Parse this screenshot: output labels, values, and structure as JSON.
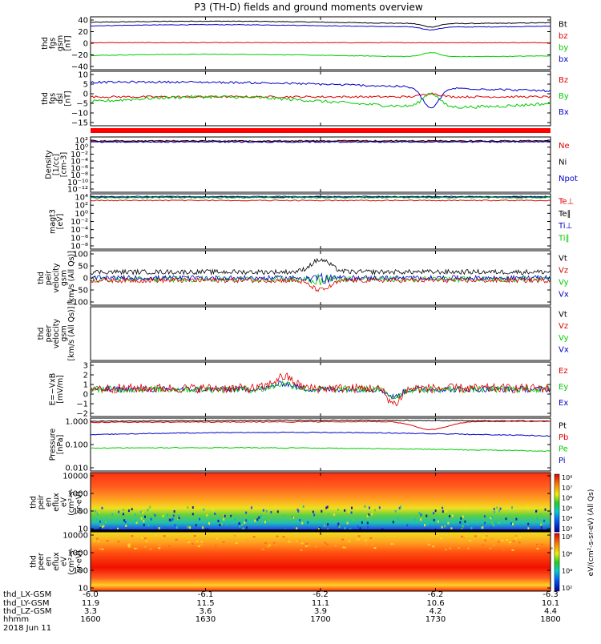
{
  "chart_data": {
    "type": "multi-panel-timeseries",
    "title": "P3 (TH-D) fields and ground moments overview",
    "date": "2018 Jun 11",
    "time_axis": {
      "start": "1600",
      "end": "1800",
      "ticks": [
        {
          "hhmm": "1600",
          "x_gsm": "-6.0",
          "y_gsm": "11.9",
          "z_gsm": "3.3"
        },
        {
          "hhmm": "1630",
          "x_gsm": "-6.1",
          "y_gsm": "11.5",
          "z_gsm": "3.6"
        },
        {
          "hhmm": "1700",
          "x_gsm": "-6.2",
          "y_gsm": "11.1",
          "z_gsm": "3.9"
        },
        {
          "hhmm": "1730",
          "x_gsm": "-6.2",
          "y_gsm": "10.6",
          "z_gsm": "4.2"
        },
        {
          "hhmm": "1800",
          "x_gsm": "-6.3",
          "y_gsm": "10.1",
          "z_gsm": "4.4"
        }
      ]
    },
    "ephemeris_labels": [
      "thd_LX-GSM",
      "thd_LY-GSM",
      "thd_LZ-GSM",
      "hhmm"
    ],
    "colors": {
      "black": "#000000",
      "red": "#e00000",
      "green": "#00cc00",
      "blue": "#0000cc"
    },
    "panels": [
      {
        "id": "fgs-gsm",
        "ylabel": [
          "thd",
          "fgs",
          "gsm",
          "[nT]"
        ],
        "ylim": [
          -40,
          40
        ],
        "yticks": [
          "40",
          "20",
          "0",
          "−20",
          "−40"
        ],
        "legend": [
          {
            "label": "Bt",
            "color": "black"
          },
          {
            "label": "bz",
            "color": "red"
          },
          {
            "label": "by",
            "color": "green"
          },
          {
            "label": "bx",
            "color": "blue"
          }
        ],
        "series": [
          {
            "name": "Bt",
            "color": "black",
            "base": 36,
            "noise": 0.6,
            "trend": 2,
            "dip": -6
          },
          {
            "name": "bx",
            "color": "blue",
            "base": 30,
            "noise": 0.5,
            "trend": 2,
            "dip": -5
          },
          {
            "name": "bz",
            "color": "red",
            "base": 1,
            "noise": 0.5,
            "trend": 0,
            "dip": 0
          },
          {
            "name": "by",
            "color": "green",
            "base": -21,
            "noise": 0.5,
            "trend": 2,
            "dip": 7
          }
        ]
      },
      {
        "id": "fgs-dsl",
        "ylabel": [
          "thd",
          "fgs",
          "dsl",
          "[nT]"
        ],
        "ylim": [
          -18,
          10
        ],
        "yticks": [
          "10",
          "5",
          "0",
          "−5",
          "−10",
          "−15"
        ],
        "legend": [
          {
            "label": "Bz",
            "color": "red"
          },
          {
            "label": "By",
            "color": "green"
          },
          {
            "label": "Bx",
            "color": "blue"
          }
        ],
        "series": [
          {
            "name": "Bz",
            "color": "red",
            "base": -3,
            "noise": 0.6,
            "trend": 0,
            "dip": 2
          },
          {
            "name": "By",
            "color": "green",
            "base": -6,
            "noise": 0.9,
            "trend": 3,
            "dip": 8
          },
          {
            "name": "Bx",
            "color": "blue",
            "base": 4,
            "noise": 0.6,
            "trend": -4,
            "dip": -12
          }
        ]
      },
      {
        "id": "density",
        "ylabel": [
          "Density",
          "[1/cc]",
          "[cm-3]"
        ],
        "log": true,
        "yticks": [
          "10²",
          "10⁰",
          "10⁻²",
          "10⁻⁴",
          "10⁻⁶",
          "10⁻⁸",
          "10⁻¹⁰",
          "10⁻¹²"
        ],
        "legend": [
          {
            "label": "Ne",
            "color": "red"
          },
          {
            "label": "Ni",
            "color": "black"
          },
          {
            "label": "Npot",
            "color": "blue"
          }
        ]
      },
      {
        "id": "temperature",
        "ylabel": [
          "magt3",
          "[eV]"
        ],
        "log": true,
        "yticks": [
          "10⁴",
          "10²",
          "10⁰",
          "10⁻²",
          "10⁻⁴",
          "10⁻⁶",
          "10⁻⁸"
        ],
        "legend": [
          {
            "label": "Te⊥",
            "color": "red"
          },
          {
            "label": "Te∥",
            "color": "black"
          },
          {
            "label": "Ti⊥",
            "color": "blue"
          },
          {
            "label": "Ti∥",
            "color": "green"
          }
        ]
      },
      {
        "id": "peir-velocity",
        "ylabel": [
          "thd",
          "peir",
          "velocity",
          "gsm",
          "[km/s (All Qs)]"
        ],
        "ylim": [
          -100,
          100
        ],
        "yticks": [
          "100",
          "50",
          "0",
          "−50",
          "−100"
        ],
        "legend": [
          {
            "label": "Vt",
            "color": "black"
          },
          {
            "label": "Vz",
            "color": "red"
          },
          {
            "label": "Vy",
            "color": "green"
          },
          {
            "label": "Vx",
            "color": "blue"
          }
        ]
      },
      {
        "id": "peer-velocity",
        "ylabel": [
          "thd",
          "peer",
          "velocity",
          "gsm",
          "[km/s (All Qs)]"
        ],
        "legend": [
          {
            "label": "Vt",
            "color": "black"
          },
          {
            "label": "Vz",
            "color": "red"
          },
          {
            "label": "Vy",
            "color": "green"
          },
          {
            "label": "Vx",
            "color": "blue"
          }
        ]
      },
      {
        "id": "efield",
        "ylabel": [
          "E=−VxB",
          "[mV/m]"
        ],
        "ylim": [
          -2,
          3
        ],
        "yticks": [
          "3",
          "2",
          "1",
          "0",
          "−1",
          "−2"
        ],
        "legend": [
          {
            "label": "Ez",
            "color": "red"
          },
          {
            "label": "Ey",
            "color": "green"
          },
          {
            "label": "Ex",
            "color": "blue"
          }
        ]
      },
      {
        "id": "pressure",
        "ylabel": [
          "Pressure",
          "[nPa]"
        ],
        "yticks": [
          "1.000",
          "0.100",
          "0.010"
        ],
        "legend": [
          {
            "label": "Pt",
            "color": "black"
          },
          {
            "label": "Pb",
            "color": "red"
          },
          {
            "label": "Pe",
            "color": "green"
          },
          {
            "label": "Pi",
            "color": "blue"
          }
        ]
      },
      {
        "id": "peir-spectrogram",
        "ylabel": [
          "thd",
          "peir",
          "en",
          "eflux",
          "eV",
          "(cm²-s-",
          "sr-eV)"
        ],
        "yticks": [
          "10000",
          "1000",
          "100",
          "10"
        ],
        "colorbar_ticks": [
          "10⁸",
          "10⁷",
          "10⁶",
          "10⁵",
          "10⁴",
          "10³"
        ],
        "colorbar_label": "eV/(cm²-s-sr-eV) (All Qs)"
      },
      {
        "id": "peer-spectrogram",
        "ylabel": [
          "thd",
          "peer",
          "en",
          "eflux",
          "eV",
          "(cm²-s-",
          "sr-eV)"
        ],
        "yticks": [
          "10000",
          "1000",
          "100",
          "10"
        ],
        "colorbar_ticks": [
          "10⁸",
          "10⁶",
          "10⁴",
          "10²"
        ],
        "colorbar_label": "eV/(cm²-s-sr-eV) (All Qs)"
      }
    ]
  }
}
